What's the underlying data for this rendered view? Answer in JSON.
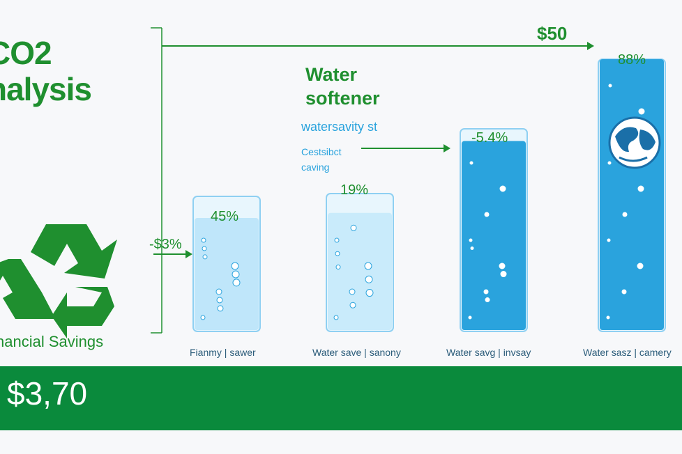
{
  "header": {
    "title_line1": "CO2",
    "title_line2": "nalysis"
  },
  "subtitle": {
    "line1": "Water",
    "line2": "softener",
    "note": "watersavity st",
    "note2_line1": "Cestsibct",
    "note2_line2": "caving"
  },
  "left_panel": {
    "caption": "nancial Savings",
    "icon": "recycle-icon"
  },
  "footer": {
    "total": "$3,70"
  },
  "annotations": {
    "top_arrow_label": "$50",
    "left_arrow_label": "-$3%"
  },
  "colors": {
    "brand_green": "#1f8f2f",
    "band_green": "#0a8a3c",
    "water_blue": "#2aa3dd",
    "light_blue": "#a9dcf5"
  },
  "chart_data": {
    "type": "bar",
    "categories": [
      "Fianmy | sawer",
      "Water save | sanony",
      "Water savg | invsay",
      "Water sasz | camery"
    ],
    "fill_levels": [
      0.84,
      0.86,
      0.94,
      1.0
    ],
    "labels": [
      "45%",
      "19%",
      "-5.4%",
      "88%"
    ],
    "title": "",
    "xlabel": "",
    "ylabel": ""
  }
}
